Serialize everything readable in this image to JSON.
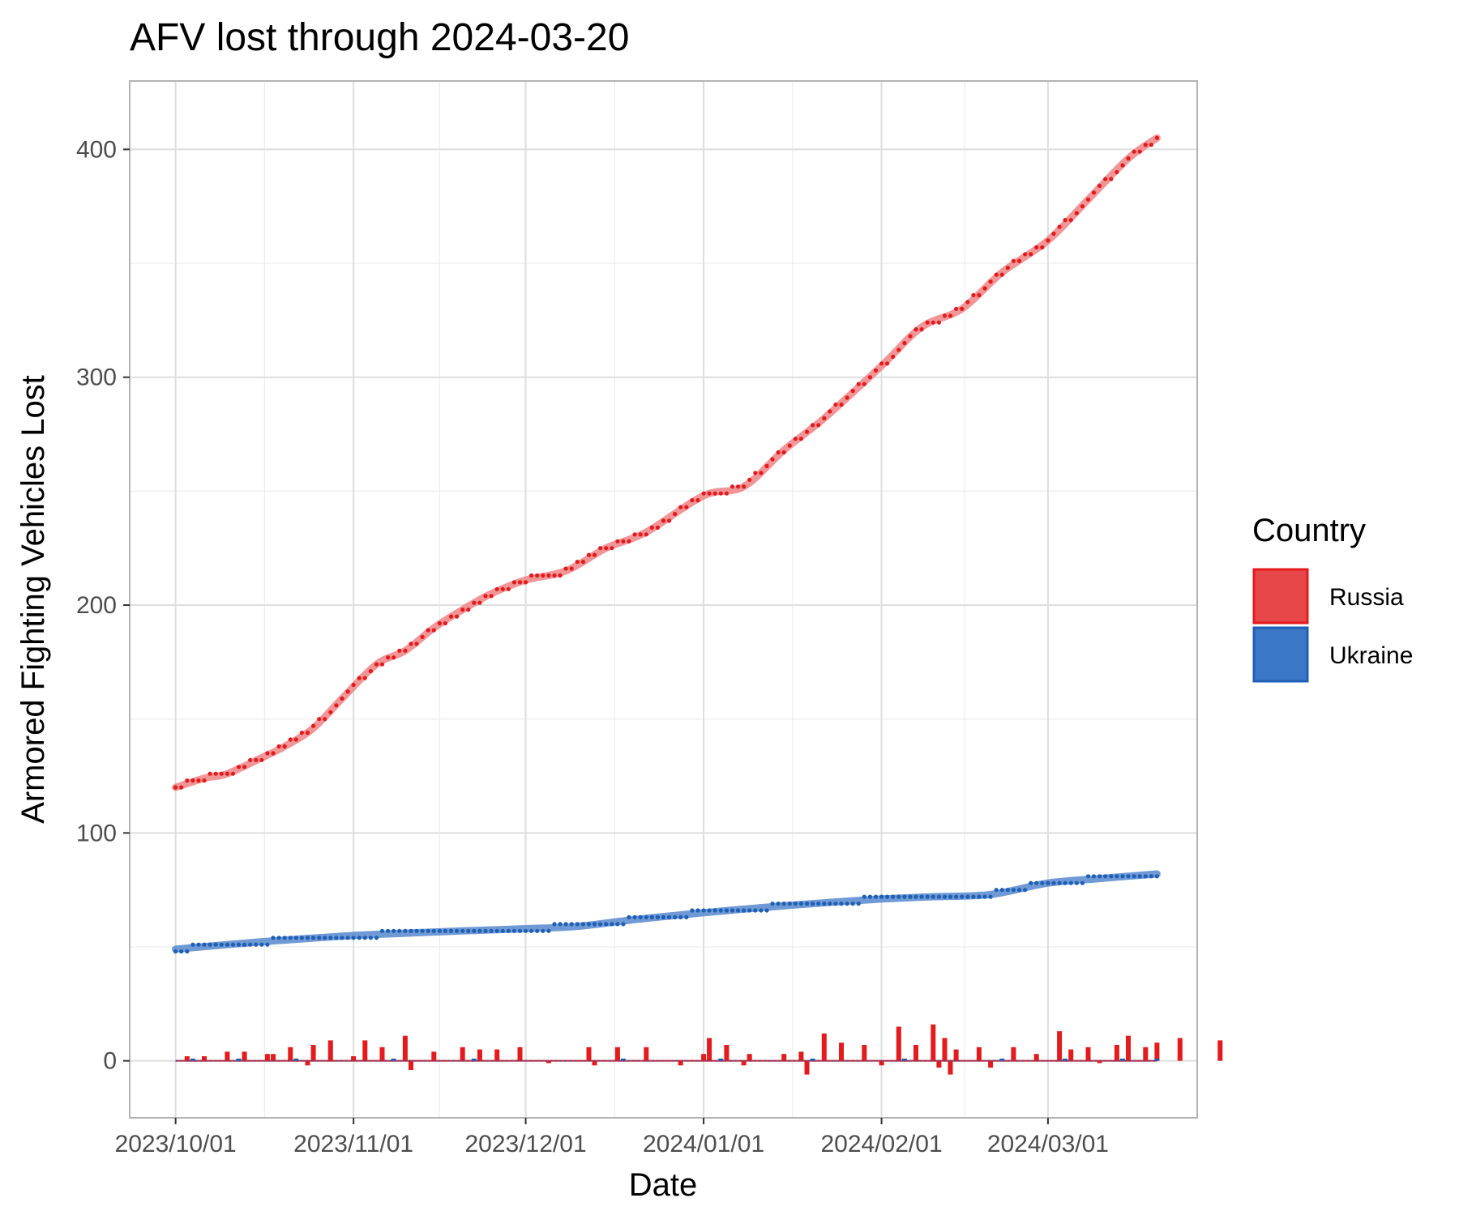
{
  "chart_data": {
    "type": "line",
    "title": "AFV lost through 2024-03-20",
    "xlabel": "Date",
    "ylabel": "Armored Fighting Vehicles Lost",
    "x_range": [
      "2023-09-23",
      "2024-03-27"
    ],
    "ylim": [
      -25,
      430
    ],
    "x_ticks": [
      {
        "date": "2023-10-01",
        "label": "2023/10/01"
      },
      {
        "date": "2023-11-01",
        "label": "2023/11/01"
      },
      {
        "date": "2023-12-01",
        "label": "2023/12/01"
      },
      {
        "date": "2024-01-01",
        "label": "2024/01/01"
      },
      {
        "date": "2024-02-01",
        "label": "2024/02/01"
      },
      {
        "date": "2024-03-01",
        "label": "2024/03/01"
      }
    ],
    "y_ticks": [
      0,
      100,
      200,
      300,
      400
    ],
    "grid": true,
    "legend": {
      "title": "Country",
      "position": "right"
    },
    "series": [
      {
        "name": "Russia",
        "color": "#e41a1c",
        "fill": "#e8474a",
        "smooth_color": "#f08a8c",
        "cumulative": [
          {
            "date": "2023-10-01",
            "value": 120
          },
          {
            "date": "2023-10-06",
            "value": 124
          },
          {
            "date": "2023-10-10",
            "value": 126
          },
          {
            "date": "2023-10-16",
            "value": 133
          },
          {
            "date": "2023-10-20",
            "value": 138
          },
          {
            "date": "2023-10-25",
            "value": 146
          },
          {
            "date": "2023-10-30",
            "value": 159
          },
          {
            "date": "2023-11-05",
            "value": 174
          },
          {
            "date": "2023-11-10",
            "value": 180
          },
          {
            "date": "2023-11-15",
            "value": 190
          },
          {
            "date": "2023-11-20",
            "value": 198
          },
          {
            "date": "2023-11-25",
            "value": 205
          },
          {
            "date": "2023-12-01",
            "value": 211
          },
          {
            "date": "2023-12-08",
            "value": 215
          },
          {
            "date": "2023-12-15",
            "value": 225
          },
          {
            "date": "2023-12-22",
            "value": 232
          },
          {
            "date": "2024-01-01",
            "value": 248
          },
          {
            "date": "2024-01-08",
            "value": 252
          },
          {
            "date": "2024-01-15",
            "value": 268
          },
          {
            "date": "2024-01-22",
            "value": 282
          },
          {
            "date": "2024-02-01",
            "value": 305
          },
          {
            "date": "2024-02-08",
            "value": 322
          },
          {
            "date": "2024-02-15",
            "value": 330
          },
          {
            "date": "2024-02-22",
            "value": 346
          },
          {
            "date": "2024-03-01",
            "value": 360
          },
          {
            "date": "2024-03-08",
            "value": 378
          },
          {
            "date": "2024-03-15",
            "value": 396
          },
          {
            "date": "2024-03-20",
            "value": 405
          }
        ],
        "daily": [
          {
            "date": "2023-10-03",
            "value": 2
          },
          {
            "date": "2023-10-06",
            "value": 2
          },
          {
            "date": "2023-10-10",
            "value": 4
          },
          {
            "date": "2023-10-13",
            "value": 4
          },
          {
            "date": "2023-10-17",
            "value": 3
          },
          {
            "date": "2023-10-18",
            "value": 3
          },
          {
            "date": "2023-10-21",
            "value": 6
          },
          {
            "date": "2023-10-24",
            "value": -2
          },
          {
            "date": "2023-10-25",
            "value": 7
          },
          {
            "date": "2023-10-28",
            "value": 9
          },
          {
            "date": "2023-11-01",
            "value": 2
          },
          {
            "date": "2023-11-03",
            "value": 9
          },
          {
            "date": "2023-11-06",
            "value": 6
          },
          {
            "date": "2023-11-10",
            "value": 11
          },
          {
            "date": "2023-11-11",
            "value": -4
          },
          {
            "date": "2023-11-15",
            "value": 4
          },
          {
            "date": "2023-11-20",
            "value": 6
          },
          {
            "date": "2023-11-23",
            "value": 5
          },
          {
            "date": "2023-11-26",
            "value": 5
          },
          {
            "date": "2023-11-30",
            "value": 6
          },
          {
            "date": "2023-12-05",
            "value": -1
          },
          {
            "date": "2023-12-12",
            "value": 6
          },
          {
            "date": "2023-12-13",
            "value": -2
          },
          {
            "date": "2023-12-17",
            "value": 6
          },
          {
            "date": "2023-12-22",
            "value": 6
          },
          {
            "date": "2023-12-28",
            "value": -2
          },
          {
            "date": "2024-01-01",
            "value": 3
          },
          {
            "date": "2024-01-02",
            "value": 10
          },
          {
            "date": "2024-01-05",
            "value": 7
          },
          {
            "date": "2024-01-08",
            "value": -2
          },
          {
            "date": "2024-01-09",
            "value": 3
          },
          {
            "date": "2024-01-15",
            "value": 3
          },
          {
            "date": "2024-01-18",
            "value": 4
          },
          {
            "date": "2024-01-19",
            "value": -6
          },
          {
            "date": "2024-01-22",
            "value": 12
          },
          {
            "date": "2024-01-25",
            "value": 8
          },
          {
            "date": "2024-01-29",
            "value": 7
          },
          {
            "date": "2024-02-01",
            "value": -2
          },
          {
            "date": "2024-02-04",
            "value": 15
          },
          {
            "date": "2024-02-07",
            "value": 7
          },
          {
            "date": "2024-02-10",
            "value": 16
          },
          {
            "date": "2024-02-11",
            "value": -3
          },
          {
            "date": "2024-02-12",
            "value": 10
          },
          {
            "date": "2024-02-13",
            "value": -6
          },
          {
            "date": "2024-02-14",
            "value": 5
          },
          {
            "date": "2024-02-18",
            "value": 6
          },
          {
            "date": "2024-02-20",
            "value": -3
          },
          {
            "date": "2024-02-24",
            "value": 6
          },
          {
            "date": "2024-02-28",
            "value": 3
          },
          {
            "date": "2024-03-03",
            "value": 13
          },
          {
            "date": "2024-03-05",
            "value": 5
          },
          {
            "date": "2024-03-08",
            "value": 6
          },
          {
            "date": "2024-03-10",
            "value": -1
          },
          {
            "date": "2024-03-13",
            "value": 7
          },
          {
            "date": "2024-03-15",
            "value": 11
          },
          {
            "date": "2024-03-18",
            "value": 6
          },
          {
            "date": "2024-03-20",
            "value": 8
          },
          {
            "date": "2024-03-24",
            "value": 10
          },
          {
            "date": "2024-03-31",
            "value": 9
          }
        ]
      },
      {
        "name": "Ukraine",
        "color": "#1f5fb4",
        "fill": "#3a78c6",
        "smooth_color": "#5f8fd0",
        "cumulative": [
          {
            "date": "2023-10-01",
            "value": 49
          },
          {
            "date": "2023-10-10",
            "value": 51
          },
          {
            "date": "2023-10-20",
            "value": 53
          },
          {
            "date": "2023-11-01",
            "value": 55
          },
          {
            "date": "2023-11-10",
            "value": 56
          },
          {
            "date": "2023-11-20",
            "value": 57
          },
          {
            "date": "2023-12-01",
            "value": 58
          },
          {
            "date": "2023-12-10",
            "value": 59
          },
          {
            "date": "2023-12-20",
            "value": 62
          },
          {
            "date": "2024-01-01",
            "value": 65
          },
          {
            "date": "2024-01-10",
            "value": 67
          },
          {
            "date": "2024-01-20",
            "value": 69
          },
          {
            "date": "2024-02-01",
            "value": 71
          },
          {
            "date": "2024-02-10",
            "value": 72
          },
          {
            "date": "2024-02-20",
            "value": 73
          },
          {
            "date": "2024-03-01",
            "value": 78
          },
          {
            "date": "2024-03-10",
            "value": 80
          },
          {
            "date": "2024-03-20",
            "value": 82
          }
        ],
        "daily": [
          {
            "date": "2023-10-04",
            "value": 1
          },
          {
            "date": "2023-10-12",
            "value": 1
          },
          {
            "date": "2023-10-22",
            "value": 1
          },
          {
            "date": "2023-11-08",
            "value": 1
          },
          {
            "date": "2023-11-22",
            "value": 1
          },
          {
            "date": "2023-12-18",
            "value": 1
          },
          {
            "date": "2024-01-04",
            "value": 1
          },
          {
            "date": "2024-01-20",
            "value": 1
          },
          {
            "date": "2024-02-05",
            "value": 1
          },
          {
            "date": "2024-02-22",
            "value": 1
          },
          {
            "date": "2024-03-04",
            "value": 1
          },
          {
            "date": "2024-03-14",
            "value": 1
          },
          {
            "date": "2024-03-20",
            "value": 1
          }
        ]
      }
    ]
  }
}
